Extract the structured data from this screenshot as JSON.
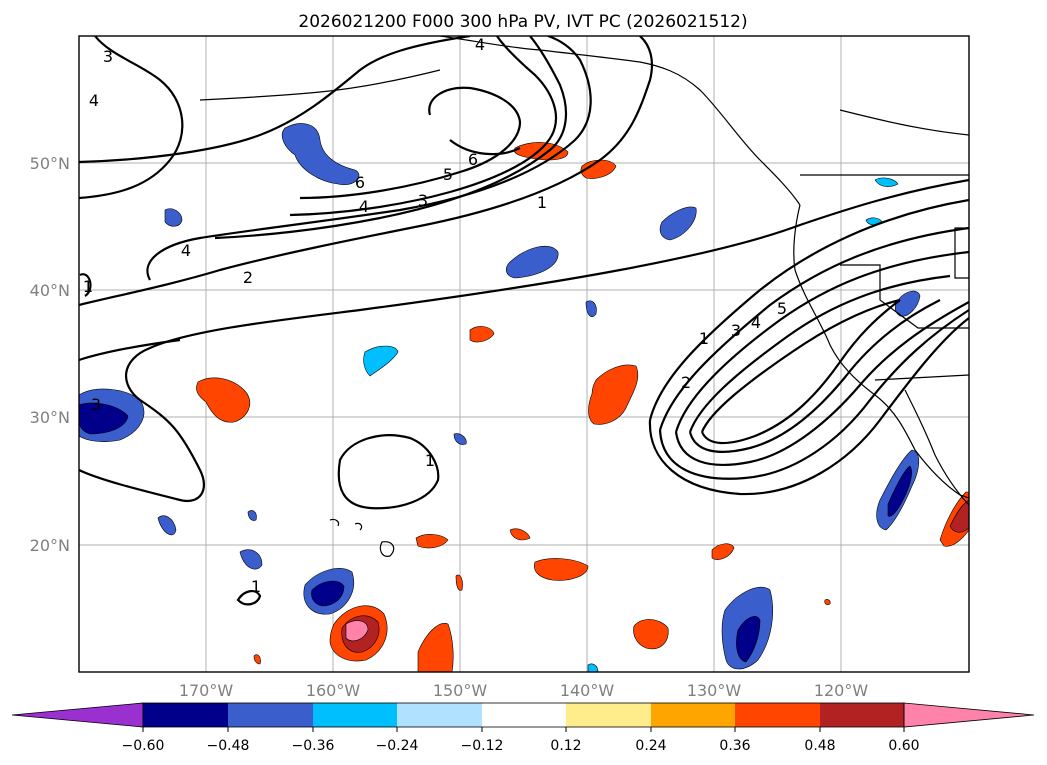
{
  "title": "2026021200 F000 300 hPa PV, IVT PC (2026021512)",
  "map": {
    "lat_labels": [
      "50°N",
      "40°N",
      "30°N",
      "20°N"
    ],
    "lon_labels": [
      "170°W",
      "160°W",
      "150°W",
      "140°W",
      "130°W",
      "120°W"
    ]
  },
  "contour_labels": [
    "3",
    "4",
    "4",
    "6",
    "5",
    "6",
    "4",
    "3",
    "1",
    "4",
    "2",
    "1",
    "3",
    "1",
    "1",
    "2",
    "3",
    "4",
    "5",
    "1"
  ],
  "colorbar": {
    "tick_labels": [
      "−0.60",
      "−0.48",
      "−0.36",
      "−0.24",
      "−0.12",
      "0.12",
      "0.24",
      "0.36",
      "0.48",
      "0.60"
    ],
    "colors": [
      "#9b30d0",
      "#00008b",
      "#3a5fcd",
      "#00bfff",
      "#b0e2ff",
      "#ffffff",
      "#ffec8b",
      "#ffa500",
      "#ff4500",
      "#b22222",
      "#ff82ab"
    ]
  }
}
